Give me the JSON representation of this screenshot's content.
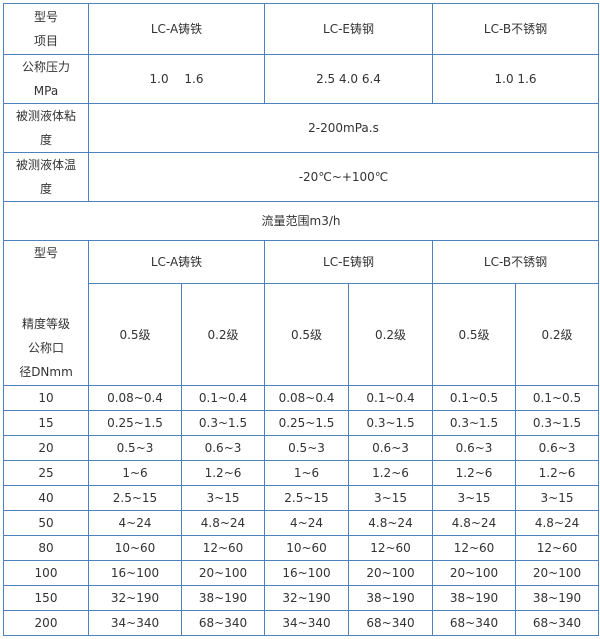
{
  "spec_table": {
    "corner_top": "型号",
    "corner_bottom": "项目",
    "models": [
      "LC-A铸铁",
      "LC-E铸钢",
      "LC-B不锈钢"
    ],
    "pressure": {
      "label_1": "公称压力",
      "label_2": "MPa",
      "values": [
        "1.0　 1.6",
        "2.5 4.0 6.4",
        "1.0 1.6"
      ]
    },
    "viscosity": {
      "label_1": "被测液体粘",
      "label_2": "度",
      "value": "2-200mPa.s"
    },
    "temperature": {
      "label_1": "被测液体温",
      "label_2": "度",
      "value": "-20℃~+100℃"
    }
  },
  "flow_table": {
    "title": "流量范围m3/h",
    "model_label": "型号",
    "accuracy_label": "精度等级",
    "dn_label_1": "公称口",
    "dn_label_2": "径DNmm",
    "models": [
      "LC-A铸铁",
      "LC-E铸钢",
      "LC-B不锈钢"
    ],
    "grades": [
      "0.5级",
      "0.2级",
      "0.5级",
      "0.2级",
      "0.5级",
      "0.2级"
    ],
    "rows": [
      {
        "dn": "10",
        "values": [
          "0.08~0.4",
          "0.1~0.4",
          "0.08~0.4",
          "0.1~0.4",
          "0.1~0.5",
          "0.1~0.5"
        ]
      },
      {
        "dn": "15",
        "values": [
          "0.25~1.5",
          "0.3~1.5",
          "0.25~1.5",
          "0.3~1.5",
          "0.3~1.5",
          "0.3~1.5"
        ]
      },
      {
        "dn": "20",
        "values": [
          "0.5~3",
          "0.6~3",
          "0.5~3",
          "0.6~3",
          "0.6~3",
          "0.6~3"
        ]
      },
      {
        "dn": "25",
        "values": [
          "1~6",
          "1.2~6",
          "1~6",
          "1.2~6",
          "1.2~6",
          "1.2~6"
        ]
      },
      {
        "dn": "40",
        "values": [
          "2.5~15",
          "3~15",
          "2.5~15",
          "3~15",
          "3~15",
          "3~15"
        ]
      },
      {
        "dn": "50",
        "values": [
          "4~24",
          "4.8~24",
          "4~24",
          "4.8~24",
          "4.8~24",
          "4.8~24"
        ]
      },
      {
        "dn": "80",
        "values": [
          "10~60",
          "12~60",
          "10~60",
          "12~60",
          "12~60",
          "12~60"
        ]
      },
      {
        "dn": "100",
        "values": [
          "16~100",
          "20~100",
          "16~100",
          "20~100",
          "20~100",
          "20~100"
        ]
      },
      {
        "dn": "150",
        "values": [
          "32~190",
          "38~190",
          "32~190",
          "38~190",
          "38~190",
          "38~190"
        ]
      },
      {
        "dn": "200",
        "values": [
          "34~340",
          "68~340",
          "34~340",
          "68~340",
          "68~340",
          "68~340"
        ]
      }
    ]
  }
}
